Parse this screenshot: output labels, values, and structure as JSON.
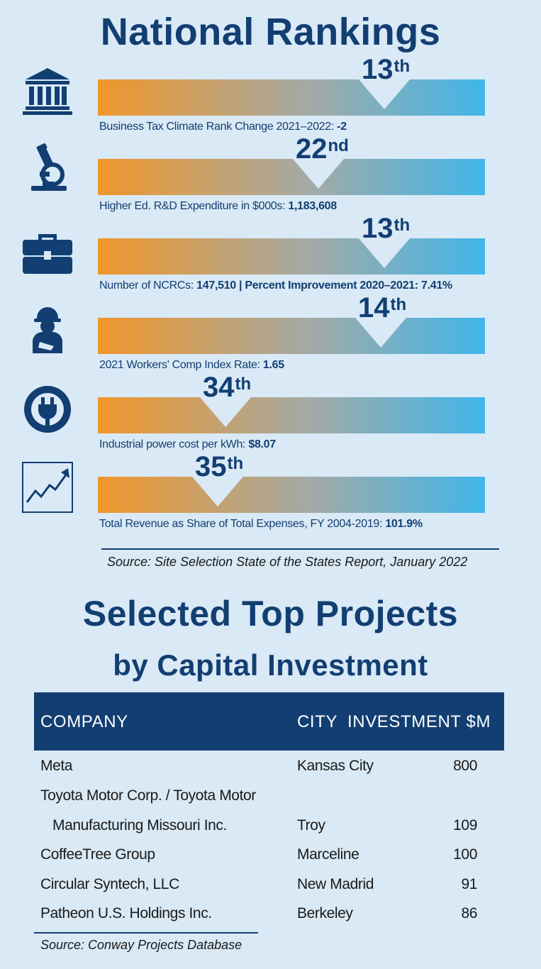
{
  "rankings_title": "National Rankings",
  "rankings": [
    {
      "icon": "government-building-icon",
      "rank": "13",
      "suffix": "th",
      "label_text": "Business Tax Climate Rank Change 2021–2022: ",
      "label_value": "-2",
      "position": 0.74
    },
    {
      "icon": "microscope-icon",
      "rank": "22",
      "suffix": "nd",
      "label_text": "Higher Ed. R&D Expenditure in $000s: ",
      "label_value": "1,183,608",
      "position": 0.57
    },
    {
      "icon": "briefcase-icon",
      "rank": "13",
      "suffix": "th",
      "label_text": "Number of NCRCs: ",
      "label_value": "147,510 | Percent Improvement 2020–2021: 7.41%",
      "position": 0.74
    },
    {
      "icon": "construction-worker-icon",
      "rank": "14",
      "suffix": "th",
      "label_text": "2021 Workers' Comp Index Rate: ",
      "label_value": "1.65",
      "position": 0.73
    },
    {
      "icon": "power-plug-icon",
      "rank": "34",
      "suffix": "th",
      "label_text": "Industrial power cost per kWh: ",
      "label_value": "$8.07",
      "position": 0.33
    },
    {
      "icon": "trend-chart-icon",
      "rank": "35",
      "suffix": "th",
      "label_text": "Total Revenue as Share of Total Expenses, FY 2004-2019: ",
      "label_value": "101.9%",
      "position": 0.31
    }
  ],
  "rankings_source": "Source: Site Selection State of the States Report, January 2022",
  "projects_title": "Selected Top Projects",
  "projects_subtitle": "by Capital Investment",
  "table": {
    "headers": {
      "company": "COMPANY",
      "city": "CITY",
      "investment": "INVESTMENT $M"
    },
    "rows": [
      {
        "company": "Meta",
        "city": "Kansas City",
        "investment": "800"
      },
      {
        "company": "Toyota Motor Corp. / Toyota Motor",
        "city": "",
        "investment": ""
      },
      {
        "company": "Manufacturing Missouri Inc.",
        "city": "Troy",
        "investment": "109"
      },
      {
        "company": "CoffeeTree Group",
        "city": "Marceline",
        "investment": "100"
      },
      {
        "company": "Circular Syntech, LLC",
        "city": "New Madrid",
        "investment": "91"
      },
      {
        "company": "Patheon U.S. Holdings Inc.",
        "city": "Berkeley",
        "investment": "86"
      }
    ]
  },
  "projects_source": "Source: Conway Projects Database",
  "colors": {
    "navy": "#123e72",
    "orange": "#f0962b",
    "blue": "#3fb6ea",
    "background": "#d9e9f5"
  }
}
